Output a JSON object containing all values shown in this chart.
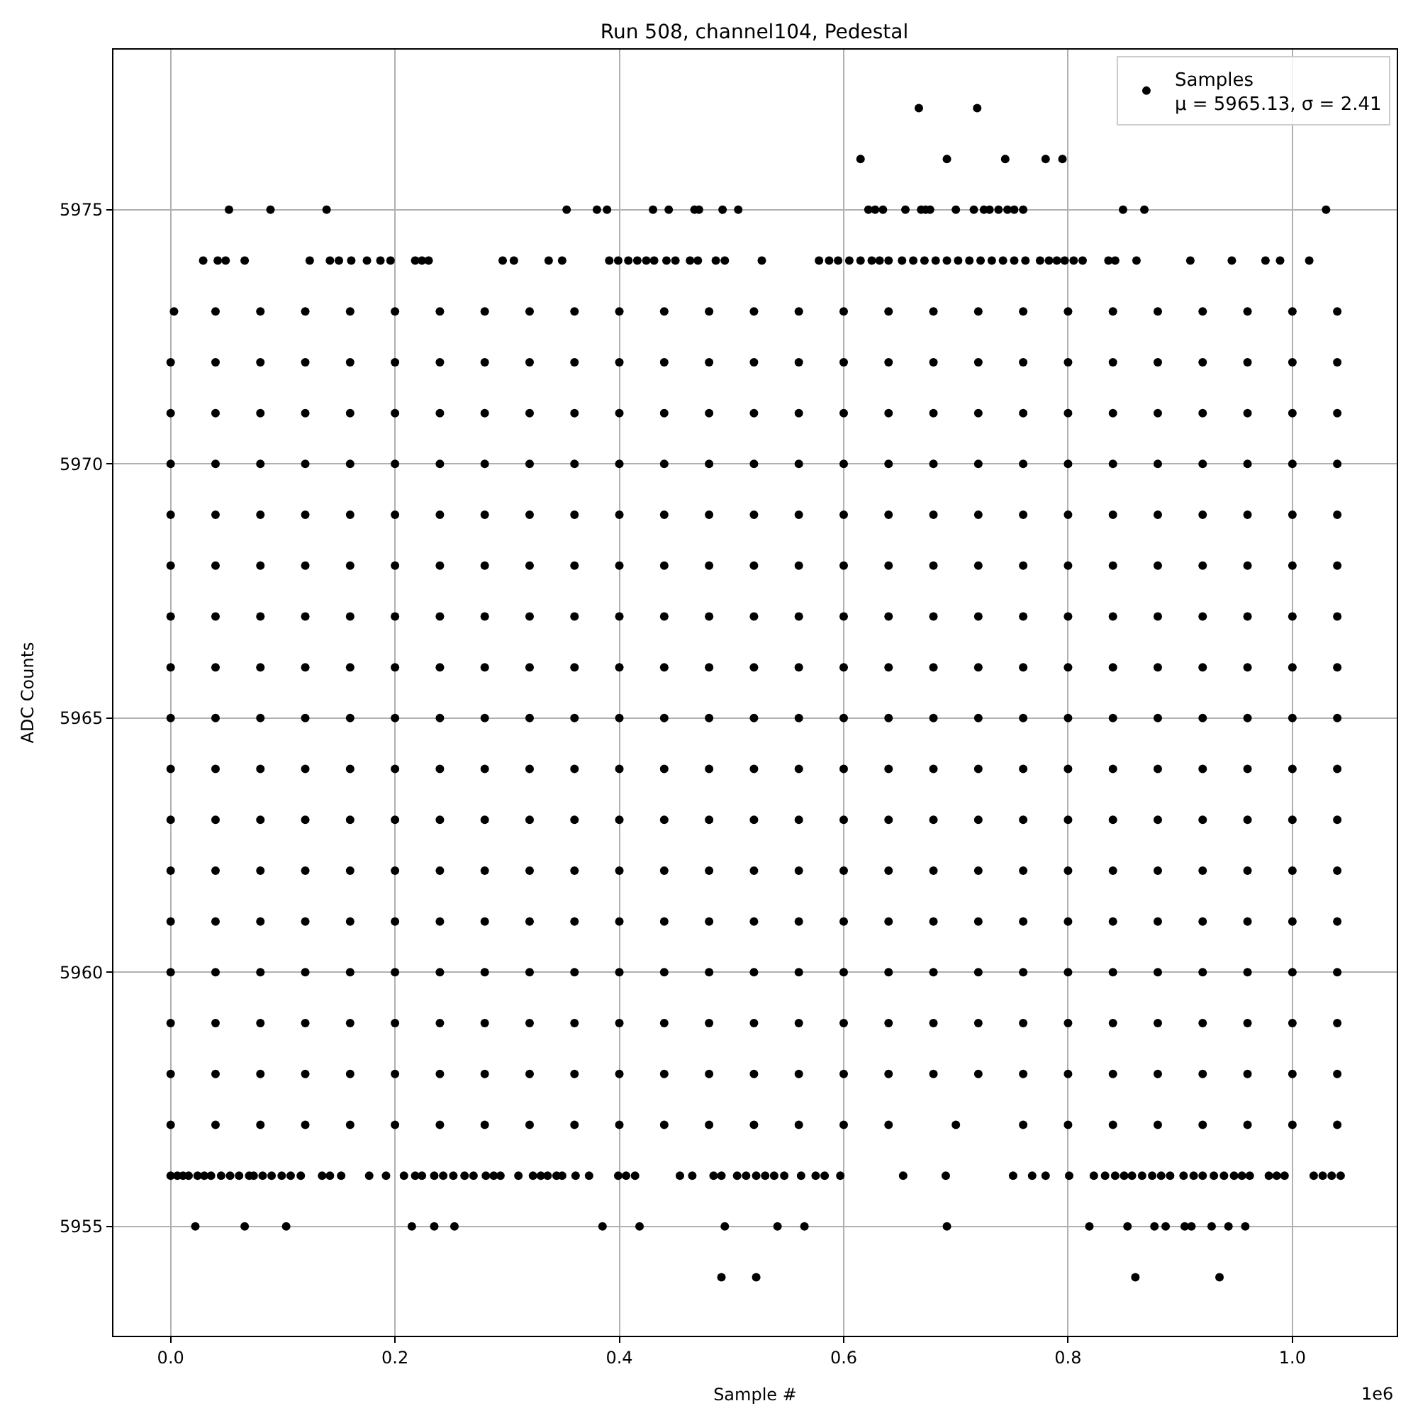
{
  "chart_data": {
    "type": "scatter",
    "title": "Run 508, channel104, Pedestal",
    "xlabel": "Sample #",
    "ylabel": "ADC Counts",
    "annotations": [
      "1e6"
    ],
    "marker": "circle",
    "grid": true,
    "legend": "top right",
    "xlim": [
      -0.051,
      1.093
    ],
    "xticks": [
      {
        "value": 0,
        "label": "0.0"
      },
      {
        "value": 0.2,
        "label": "0.2"
      },
      {
        "value": 0.4,
        "label": "0.4"
      },
      {
        "value": 0.6,
        "label": "0.6"
      },
      {
        "value": 0.8,
        "label": "0.8"
      },
      {
        "value": 1.0,
        "label": "1.0"
      }
    ],
    "ylim": [
      5952.85,
      5978.15
    ],
    "yticks": [
      5955,
      5960,
      5965,
      5970,
      5975
    ],
    "series": [
      {
        "name": "Samples\nμ = 5965.13, σ = 2.41",
        "color": "#000000",
        "x": [
          0.667,
          0.719
        ],
        "values": [
          5977,
          5977
        ]
      },
      {
        "color": "#000000",
        "x": [
          0.615,
          0.692,
          0.744,
          0.78,
          0.795
        ],
        "values": [
          5976,
          5976,
          5976,
          5976,
          5976
        ]
      },
      {
        "color": "#000000",
        "x": [
          0.052,
          0.089,
          0.139,
          0.353,
          0.38,
          0.389,
          0.43,
          0.444,
          0.467,
          0.471,
          0.492,
          0.506,
          0.622,
          0.628,
          0.635,
          0.655,
          0.669,
          0.673,
          0.677,
          0.7,
          0.716,
          0.725,
          0.73,
          0.738,
          0.746,
          0.752,
          0.76,
          0.849,
          0.868,
          1.03
        ],
        "values": [
          5975,
          5975,
          5975,
          5975,
          5975,
          5975,
          5975,
          5975,
          5975,
          5975,
          5975,
          5975,
          5975,
          5975,
          5975,
          5975,
          5975,
          5975,
          5975,
          5975,
          5975,
          5975,
          5975,
          5975,
          5975,
          5975,
          5975,
          5975,
          5975,
          5975
        ]
      },
      {
        "color": "#000000",
        "x": [
          0.029,
          0.042,
          0.049,
          0.066,
          0.124,
          0.142,
          0.15,
          0.161,
          0.175,
          0.187,
          0.196,
          0.218,
          0.224,
          0.23,
          0.296,
          0.306,
          0.337,
          0.349,
          0.391,
          0.399,
          0.408,
          0.416,
          0.424,
          0.431,
          0.442,
          0.45,
          0.463,
          0.47,
          0.486,
          0.494,
          0.527,
          0.578,
          0.587,
          0.595,
          0.605,
          0.615,
          0.625,
          0.632,
          0.64,
          0.652,
          0.662,
          0.672,
          0.682,
          0.692,
          0.702,
          0.712,
          0.722,
          0.732,
          0.742,
          0.752,
          0.762,
          0.775,
          0.783,
          0.79,
          0.797,
          0.805,
          0.813,
          0.836,
          0.842,
          0.861,
          0.909,
          0.946,
          0.976,
          0.989,
          1.015
        ],
        "values": [
          5974,
          5974,
          5974,
          5974,
          5974,
          5974,
          5974,
          5974,
          5974,
          5974,
          5974,
          5974,
          5974,
          5974,
          5974,
          5974,
          5974,
          5974,
          5974,
          5974,
          5974,
          5974,
          5974,
          5974,
          5974,
          5974,
          5974,
          5974,
          5974,
          5974,
          5974,
          5974,
          5974,
          5974,
          5974,
          5974,
          5974,
          5974,
          5974,
          5974,
          5974,
          5974,
          5974,
          5974,
          5974,
          5974,
          5974,
          5974,
          5974,
          5974,
          5974,
          5974,
          5974,
          5974,
          5974,
          5974,
          5974,
          5974,
          5974,
          5974,
          5974,
          5974,
          5974,
          5974,
          5974
        ]
      },
      {
        "color": "#000000",
        "x": [
          0.003,
          0.04,
          0.08,
          0.12,
          0.16,
          0.2,
          0.24,
          0.28,
          0.32,
          0.36,
          0.4,
          0.44,
          0.48,
          0.52,
          0.56,
          0.6,
          0.64,
          0.68,
          0.72,
          0.76,
          0.8,
          0.84,
          0.88,
          0.92,
          0.96,
          1.0,
          1.04
        ],
        "values": [
          5973,
          5973,
          5973,
          5973,
          5973,
          5973,
          5973,
          5973,
          5973,
          5973,
          5973,
          5973,
          5973,
          5973,
          5973,
          5973,
          5973,
          5973,
          5973,
          5973,
          5973,
          5973,
          5973,
          5973,
          5973,
          5973,
          5973
        ]
      },
      {
        "color": "#000000",
        "x": [
          0,
          0.04,
          0.08,
          0.12,
          0.16,
          0.2,
          0.24,
          0.28,
          0.32,
          0.36,
          0.4,
          0.44,
          0.48,
          0.52,
          0.56,
          0.6,
          0.64,
          0.68,
          0.72,
          0.76,
          0.8,
          0.84,
          0.88,
          0.92,
          0.96,
          1.0,
          1.04
        ],
        "values": [
          5972,
          5972,
          5972,
          5972,
          5972,
          5972,
          5972,
          5972,
          5972,
          5972,
          5972,
          5972,
          5972,
          5972,
          5972,
          5972,
          5972,
          5972,
          5972,
          5972,
          5972,
          5972,
          5972,
          5972,
          5972,
          5972,
          5972
        ]
      },
      {
        "color": "#000000",
        "x": [
          0,
          0.04,
          0.08,
          0.12,
          0.16,
          0.2,
          0.24,
          0.28,
          0.32,
          0.36,
          0.4,
          0.44,
          0.48,
          0.52,
          0.56,
          0.6,
          0.64,
          0.68,
          0.72,
          0.76,
          0.8,
          0.84,
          0.88,
          0.92,
          0.96,
          1.0,
          1.04
        ],
        "values": [
          5971,
          5971,
          5971,
          5971,
          5971,
          5971,
          5971,
          5971,
          5971,
          5971,
          5971,
          5971,
          5971,
          5971,
          5971,
          5971,
          5971,
          5971,
          5971,
          5971,
          5971,
          5971,
          5971,
          5971,
          5971,
          5971,
          5971
        ]
      },
      {
        "color": "#000000",
        "x": [
          0,
          0.04,
          0.08,
          0.12,
          0.16,
          0.2,
          0.24,
          0.28,
          0.32,
          0.36,
          0.4,
          0.44,
          0.48,
          0.52,
          0.56,
          0.6,
          0.64,
          0.68,
          0.72,
          0.76,
          0.8,
          0.84,
          0.88,
          0.92,
          0.96,
          1.0,
          1.04
        ],
        "values": [
          5970,
          5970,
          5970,
          5970,
          5970,
          5970,
          5970,
          5970,
          5970,
          5970,
          5970,
          5970,
          5970,
          5970,
          5970,
          5970,
          5970,
          5970,
          5970,
          5970,
          5970,
          5970,
          5970,
          5970,
          5970,
          5970,
          5970
        ]
      },
      {
        "color": "#000000",
        "x": [
          0,
          0.04,
          0.08,
          0.12,
          0.16,
          0.2,
          0.24,
          0.28,
          0.32,
          0.36,
          0.4,
          0.44,
          0.48,
          0.52,
          0.56,
          0.6,
          0.64,
          0.68,
          0.72,
          0.76,
          0.8,
          0.84,
          0.88,
          0.92,
          0.96,
          1.0,
          1.04
        ],
        "values": [
          5969,
          5969,
          5969,
          5969,
          5969,
          5969,
          5969,
          5969,
          5969,
          5969,
          5969,
          5969,
          5969,
          5969,
          5969,
          5969,
          5969,
          5969,
          5969,
          5969,
          5969,
          5969,
          5969,
          5969,
          5969,
          5969,
          5969
        ]
      },
      {
        "color": "#000000",
        "x": [
          0,
          0.04,
          0.08,
          0.12,
          0.16,
          0.2,
          0.24,
          0.28,
          0.32,
          0.36,
          0.4,
          0.44,
          0.48,
          0.52,
          0.56,
          0.6,
          0.64,
          0.68,
          0.72,
          0.76,
          0.8,
          0.84,
          0.88,
          0.92,
          0.96,
          1.0,
          1.04
        ],
        "values": [
          5968,
          5968,
          5968,
          5968,
          5968,
          5968,
          5968,
          5968,
          5968,
          5968,
          5968,
          5968,
          5968,
          5968,
          5968,
          5968,
          5968,
          5968,
          5968,
          5968,
          5968,
          5968,
          5968,
          5968,
          5968,
          5968,
          5968
        ]
      },
      {
        "color": "#000000",
        "x": [
          0,
          0.04,
          0.08,
          0.12,
          0.16,
          0.2,
          0.24,
          0.28,
          0.32,
          0.36,
          0.4,
          0.44,
          0.48,
          0.52,
          0.56,
          0.6,
          0.64,
          0.68,
          0.72,
          0.76,
          0.8,
          0.84,
          0.88,
          0.92,
          0.96,
          1.0,
          1.04
        ],
        "values": [
          5967,
          5967,
          5967,
          5967,
          5967,
          5967,
          5967,
          5967,
          5967,
          5967,
          5967,
          5967,
          5967,
          5967,
          5967,
          5967,
          5967,
          5967,
          5967,
          5967,
          5967,
          5967,
          5967,
          5967,
          5967,
          5967,
          5967
        ]
      },
      {
        "color": "#000000",
        "x": [
          0,
          0.04,
          0.08,
          0.12,
          0.16,
          0.2,
          0.24,
          0.28,
          0.32,
          0.36,
          0.4,
          0.44,
          0.48,
          0.52,
          0.56,
          0.6,
          0.64,
          0.68,
          0.72,
          0.76,
          0.8,
          0.84,
          0.88,
          0.92,
          0.96,
          1.0,
          1.04
        ],
        "values": [
          5966,
          5966,
          5966,
          5966,
          5966,
          5966,
          5966,
          5966,
          5966,
          5966,
          5966,
          5966,
          5966,
          5966,
          5966,
          5966,
          5966,
          5966,
          5966,
          5966,
          5966,
          5966,
          5966,
          5966,
          5966,
          5966,
          5966
        ]
      },
      {
        "color": "#000000",
        "x": [
          0,
          0.04,
          0.08,
          0.12,
          0.16,
          0.2,
          0.24,
          0.28,
          0.32,
          0.36,
          0.4,
          0.44,
          0.48,
          0.52,
          0.56,
          0.6,
          0.64,
          0.68,
          0.72,
          0.76,
          0.8,
          0.84,
          0.88,
          0.92,
          0.96,
          1.0,
          1.04
        ],
        "values": [
          5965,
          5965,
          5965,
          5965,
          5965,
          5965,
          5965,
          5965,
          5965,
          5965,
          5965,
          5965,
          5965,
          5965,
          5965,
          5965,
          5965,
          5965,
          5965,
          5965,
          5965,
          5965,
          5965,
          5965,
          5965,
          5965,
          5965
        ]
      },
      {
        "color": "#000000",
        "x": [
          0,
          0.04,
          0.08,
          0.12,
          0.16,
          0.2,
          0.24,
          0.28,
          0.32,
          0.36,
          0.4,
          0.44,
          0.48,
          0.52,
          0.56,
          0.6,
          0.64,
          0.68,
          0.72,
          0.76,
          0.8,
          0.84,
          0.88,
          0.92,
          0.96,
          1.0,
          1.04
        ],
        "values": [
          5964,
          5964,
          5964,
          5964,
          5964,
          5964,
          5964,
          5964,
          5964,
          5964,
          5964,
          5964,
          5964,
          5964,
          5964,
          5964,
          5964,
          5964,
          5964,
          5964,
          5964,
          5964,
          5964,
          5964,
          5964,
          5964,
          5964
        ]
      },
      {
        "color": "#000000",
        "x": [
          0,
          0.04,
          0.08,
          0.12,
          0.16,
          0.2,
          0.24,
          0.28,
          0.32,
          0.36,
          0.4,
          0.44,
          0.48,
          0.52,
          0.56,
          0.6,
          0.64,
          0.68,
          0.72,
          0.76,
          0.8,
          0.84,
          0.88,
          0.92,
          0.96,
          1.0,
          1.04
        ],
        "values": [
          5963,
          5963,
          5963,
          5963,
          5963,
          5963,
          5963,
          5963,
          5963,
          5963,
          5963,
          5963,
          5963,
          5963,
          5963,
          5963,
          5963,
          5963,
          5963,
          5963,
          5963,
          5963,
          5963,
          5963,
          5963,
          5963,
          5963
        ]
      },
      {
        "color": "#000000",
        "x": [
          0,
          0.04,
          0.08,
          0.12,
          0.16,
          0.2,
          0.24,
          0.28,
          0.32,
          0.36,
          0.4,
          0.44,
          0.48,
          0.52,
          0.56,
          0.6,
          0.64,
          0.68,
          0.72,
          0.76,
          0.8,
          0.84,
          0.88,
          0.92,
          0.96,
          1.0,
          1.04
        ],
        "values": [
          5962,
          5962,
          5962,
          5962,
          5962,
          5962,
          5962,
          5962,
          5962,
          5962,
          5962,
          5962,
          5962,
          5962,
          5962,
          5962,
          5962,
          5962,
          5962,
          5962,
          5962,
          5962,
          5962,
          5962,
          5962,
          5962,
          5962
        ]
      },
      {
        "color": "#000000",
        "x": [
          0,
          0.04,
          0.08,
          0.12,
          0.16,
          0.2,
          0.24,
          0.28,
          0.32,
          0.36,
          0.4,
          0.44,
          0.48,
          0.52,
          0.56,
          0.6,
          0.64,
          0.68,
          0.72,
          0.76,
          0.8,
          0.84,
          0.88,
          0.92,
          0.96,
          1.0,
          1.04
        ],
        "values": [
          5961,
          5961,
          5961,
          5961,
          5961,
          5961,
          5961,
          5961,
          5961,
          5961,
          5961,
          5961,
          5961,
          5961,
          5961,
          5961,
          5961,
          5961,
          5961,
          5961,
          5961,
          5961,
          5961,
          5961,
          5961,
          5961,
          5961
        ]
      },
      {
        "color": "#000000",
        "x": [
          0,
          0.04,
          0.08,
          0.12,
          0.16,
          0.2,
          0.24,
          0.28,
          0.32,
          0.36,
          0.4,
          0.44,
          0.48,
          0.52,
          0.56,
          0.6,
          0.64,
          0.68,
          0.72,
          0.76,
          0.8,
          0.84,
          0.88,
          0.92,
          0.96,
          1.0,
          1.04
        ],
        "values": [
          5960,
          5960,
          5960,
          5960,
          5960,
          5960,
          5960,
          5960,
          5960,
          5960,
          5960,
          5960,
          5960,
          5960,
          5960,
          5960,
          5960,
          5960,
          5960,
          5960,
          5960,
          5960,
          5960,
          5960,
          5960,
          5960,
          5960
        ]
      },
      {
        "color": "#000000",
        "x": [
          0,
          0.04,
          0.08,
          0.12,
          0.16,
          0.2,
          0.24,
          0.28,
          0.32,
          0.36,
          0.4,
          0.44,
          0.48,
          0.52,
          0.56,
          0.6,
          0.64,
          0.68,
          0.72,
          0.76,
          0.8,
          0.84,
          0.88,
          0.92,
          0.96,
          1.0,
          1.04
        ],
        "values": [
          5959,
          5959,
          5959,
          5959,
          5959,
          5959,
          5959,
          5959,
          5959,
          5959,
          5959,
          5959,
          5959,
          5959,
          5959,
          5959,
          5959,
          5959,
          5959,
          5959,
          5959,
          5959,
          5959,
          5959,
          5959,
          5959,
          5959
        ]
      },
      {
        "color": "#000000",
        "x": [
          0,
          0.04,
          0.08,
          0.12,
          0.16,
          0.2,
          0.24,
          0.28,
          0.32,
          0.36,
          0.4,
          0.44,
          0.48,
          0.52,
          0.56,
          0.6,
          0.64,
          0.68,
          0.72,
          0.76,
          0.8,
          0.84,
          0.88,
          0.92,
          0.96,
          1.0,
          1.04
        ],
        "values": [
          5958,
          5958,
          5958,
          5958,
          5958,
          5958,
          5958,
          5958,
          5958,
          5958,
          5958,
          5958,
          5958,
          5958,
          5958,
          5958,
          5958,
          5958,
          5958,
          5958,
          5958,
          5958,
          5958,
          5958,
          5958,
          5958,
          5958
        ]
      },
      {
        "color": "#000000",
        "x": [
          0,
          0.04,
          0.08,
          0.12,
          0.16,
          0.2,
          0.24,
          0.28,
          0.32,
          0.36,
          0.4,
          0.44,
          0.48,
          0.52,
          0.56,
          0.6,
          0.64,
          0.7,
          0.76,
          0.8,
          0.84,
          0.88,
          0.92,
          0.96,
          1.0,
          1.04
        ],
        "values": [
          5957,
          5957,
          5957,
          5957,
          5957,
          5957,
          5957,
          5957,
          5957,
          5957,
          5957,
          5957,
          5957,
          5957,
          5957,
          5957,
          5957,
          5957,
          5957,
          5957,
          5957,
          5957,
          5957,
          5957,
          5957,
          5957
        ]
      },
      {
        "color": "#000000",
        "x": [
          0.0,
          0.006,
          0.011,
          0.016,
          0.024,
          0.03,
          0.036,
          0.045,
          0.053,
          0.061,
          0.07,
          0.074,
          0.082,
          0.09,
          0.099,
          0.107,
          0.116,
          0.135,
          0.142,
          0.152,
          0.177,
          0.192,
          0.208,
          0.218,
          0.224,
          0.235,
          0.243,
          0.252,
          0.262,
          0.27,
          0.281,
          0.288,
          0.294,
          0.31,
          0.323,
          0.33,
          0.336,
          0.344,
          0.349,
          0.361,
          0.373,
          0.399,
          0.406,
          0.414,
          0.454,
          0.465,
          0.484,
          0.491,
          0.505,
          0.513,
          0.522,
          0.53,
          0.538,
          0.547,
          0.562,
          0.575,
          0.583,
          0.597,
          0.653,
          0.691,
          0.751,
          0.768,
          0.78,
          0.801,
          0.823,
          0.833,
          0.842,
          0.85,
          0.857,
          0.866,
          0.875,
          0.883,
          0.891,
          0.903,
          0.912,
          0.92,
          0.93,
          0.939,
          0.948,
          0.955,
          0.962,
          0.979,
          0.986,
          0.993,
          1.019,
          1.027,
          1.035,
          1.043
        ],
        "values": [
          5956,
          5956,
          5956,
          5956,
          5956,
          5956,
          5956,
          5956,
          5956,
          5956,
          5956,
          5956,
          5956,
          5956,
          5956,
          5956,
          5956,
          5956,
          5956,
          5956,
          5956,
          5956,
          5956,
          5956,
          5956,
          5956,
          5956,
          5956,
          5956,
          5956,
          5956,
          5956,
          5956,
          5956,
          5956,
          5956,
          5956,
          5956,
          5956,
          5956,
          5956,
          5956,
          5956,
          5956,
          5956,
          5956,
          5956,
          5956,
          5956,
          5956,
          5956,
          5956,
          5956,
          5956,
          5956,
          5956,
          5956,
          5956,
          5956,
          5956,
          5956,
          5956,
          5956,
          5956,
          5956,
          5956,
          5956,
          5956,
          5956,
          5956,
          5956,
          5956,
          5956,
          5956,
          5956,
          5956,
          5956,
          5956,
          5956,
          5956,
          5956,
          5956,
          5956,
          5956,
          5956,
          5956,
          5956,
          5956
        ]
      },
      {
        "color": "#000000",
        "x": [
          0.022,
          0.066,
          0.103,
          0.215,
          0.235,
          0.253,
          0.385,
          0.418,
          0.494,
          0.541,
          0.565,
          0.692,
          0.819,
          0.853,
          0.877,
          0.887,
          0.904,
          0.91,
          0.928,
          0.943,
          0.958
        ],
        "values": [
          5955,
          5955,
          5955,
          5955,
          5955,
          5955,
          5955,
          5955,
          5955,
          5955,
          5955,
          5955,
          5955,
          5955,
          5955,
          5955,
          5955,
          5955,
          5955,
          5955,
          5955
        ]
      },
      {
        "color": "#000000",
        "x": [
          0.491,
          0.522,
          0.857,
          0.86,
          0.935
        ],
        "values": [
          5954,
          5954,
          null,
          5954,
          5954
        ]
      }
    ]
  }
}
